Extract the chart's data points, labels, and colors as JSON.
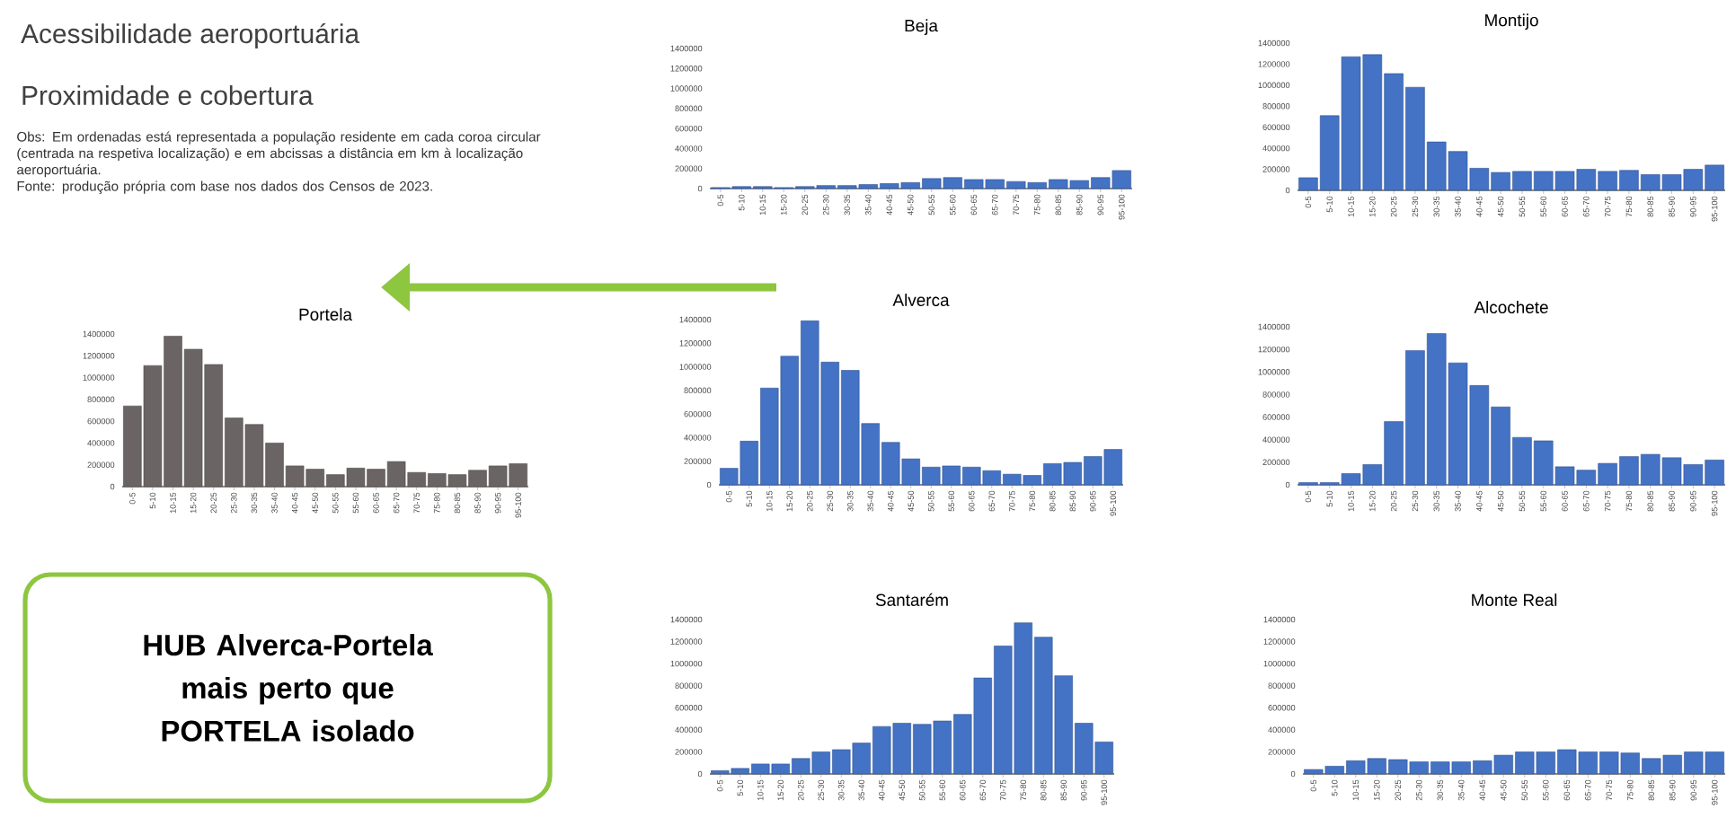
{
  "chart_data": [
    {
      "type": "other",
      "title": "Acessibilidade aeroportuária",
      "subtitle": "Proximidade e cobertura",
      "annotations": [
        "Obs: Em ordenadas está representada a população residente em cada coroa circular (centrada na respetiva localização) e em abcissas a distância em km à localização aeroportuária.",
        "Fonte: produção própria com base nos dados dos Censos de 2023.",
        "HUB Alverca-Portela mais perto que PORTELA isolado"
      ]
    },
    {
      "type": "bar",
      "title": "Beja",
      "color": "#4472c4",
      "ylim": [
        0,
        1400000
      ],
      "yticks": [
        0,
        200000,
        400000,
        600000,
        800000,
        1000000,
        1200000,
        1400000
      ],
      "categories": [
        "0-5",
        "5-10",
        "10-15",
        "15-20",
        "20-25",
        "25-30",
        "30-35",
        "35-40",
        "40-45",
        "45-50",
        "50-55",
        "55-60",
        "60-65",
        "65-70",
        "70-75",
        "75-80",
        "80-85",
        "85-90",
        "90-95",
        "95-100"
      ],
      "values": [
        10000,
        20000,
        20000,
        10000,
        20000,
        30000,
        30000,
        40000,
        50000,
        60000,
        100000,
        110000,
        90000,
        90000,
        70000,
        60000,
        90000,
        80000,
        110000,
        180000
      ]
    },
    {
      "type": "bar",
      "title": "Montijo",
      "color": "#4472c4",
      "ylim": [
        0,
        1400000
      ],
      "yticks": [
        0,
        200000,
        400000,
        600000,
        800000,
        1000000,
        1200000,
        1400000
      ],
      "categories": [
        "0-5",
        "5-10",
        "10-15",
        "15-20",
        "20-25",
        "25-30",
        "30-35",
        "35-40",
        "40-45",
        "45-50",
        "50-55",
        "55-60",
        "60-65",
        "65-70",
        "70-75",
        "75-80",
        "80-85",
        "85-90",
        "90-95",
        "95-100"
      ],
      "values": [
        120000,
        710000,
        1270000,
        1290000,
        1110000,
        980000,
        460000,
        370000,
        210000,
        170000,
        180000,
        180000,
        180000,
        200000,
        180000,
        190000,
        150000,
        150000,
        200000,
        240000
      ]
    },
    {
      "type": "bar",
      "title": "Portela",
      "color": "#6b6464",
      "ylim": [
        0,
        1400000
      ],
      "yticks": [
        0,
        200000,
        400000,
        600000,
        800000,
        1000000,
        1200000,
        1400000
      ],
      "categories": [
        "0-5",
        "5-10",
        "10-15",
        "15-20",
        "20-25",
        "25-30",
        "30-35",
        "35-40",
        "40-45",
        "45-50",
        "50-55",
        "55-60",
        "60-65",
        "65-70",
        "70-75",
        "75-80",
        "80-85",
        "85-90",
        "90-95",
        "95-100"
      ],
      "values": [
        740000,
        1110000,
        1380000,
        1260000,
        1120000,
        630000,
        570000,
        400000,
        190000,
        160000,
        110000,
        170000,
        160000,
        230000,
        130000,
        120000,
        110000,
        150000,
        190000,
        210000
      ]
    },
    {
      "type": "bar",
      "title": "Alverca",
      "color": "#4472c4",
      "ylim": [
        0,
        1400000
      ],
      "yticks": [
        0,
        200000,
        400000,
        600000,
        800000,
        1000000,
        1200000,
        1400000
      ],
      "categories": [
        "0-5",
        "5-10",
        "10-15",
        "15-20",
        "20-25",
        "25-30",
        "30-35",
        "35-40",
        "40-45",
        "45-50",
        "50-55",
        "55-60",
        "60-65",
        "65-70",
        "70-75",
        "75-80",
        "80-85",
        "85-90",
        "90-95",
        "95-100"
      ],
      "values": [
        140000,
        370000,
        820000,
        1090000,
        1390000,
        1040000,
        970000,
        520000,
        360000,
        220000,
        150000,
        160000,
        150000,
        120000,
        90000,
        80000,
        180000,
        190000,
        240000,
        300000
      ]
    },
    {
      "type": "bar",
      "title": "Alcochete",
      "color": "#4472c4",
      "ylim": [
        0,
        1400000
      ],
      "yticks": [
        0,
        200000,
        400000,
        600000,
        800000,
        1000000,
        1200000,
        1400000
      ],
      "categories": [
        "0-5",
        "5-10",
        "10-15",
        "15-20",
        "20-25",
        "25-30",
        "30-35",
        "35-40",
        "40-45",
        "45-50",
        "50-55",
        "55-60",
        "60-65",
        "65-70",
        "70-75",
        "75-80",
        "80-85",
        "85-90",
        "90-95",
        "95-100"
      ],
      "values": [
        20000,
        20000,
        100000,
        180000,
        560000,
        1190000,
        1340000,
        1080000,
        880000,
        690000,
        420000,
        390000,
        160000,
        130000,
        190000,
        250000,
        270000,
        240000,
        180000,
        220000
      ]
    },
    {
      "type": "bar",
      "title": "Santarém",
      "color": "#4472c4",
      "ylim": [
        0,
        1400000
      ],
      "yticks": [
        0,
        200000,
        400000,
        600000,
        800000,
        1000000,
        1200000,
        1400000
      ],
      "categories": [
        "0-5",
        "5-10",
        "10-15",
        "15-20",
        "20-25",
        "25-30",
        "30-35",
        "35-40",
        "40-45",
        "45-50",
        "50-55",
        "55-60",
        "60-65",
        "65-70",
        "70-75",
        "75-80",
        "80-85",
        "85-90",
        "90-95",
        "95-100"
      ],
      "values": [
        30000,
        50000,
        90000,
        90000,
        140000,
        200000,
        220000,
        280000,
        430000,
        460000,
        450000,
        480000,
        540000,
        870000,
        1160000,
        1370000,
        1240000,
        890000,
        460000,
        290000
      ]
    },
    {
      "type": "bar",
      "title": "Monte Real",
      "color": "#4472c4",
      "ylim": [
        0,
        1400000
      ],
      "yticks": [
        0,
        200000,
        400000,
        600000,
        800000,
        1000000,
        1200000,
        1400000
      ],
      "categories": [
        "0-5",
        "5-10",
        "10-15",
        "15-20",
        "20-25",
        "25-30",
        "30-35",
        "35-40",
        "40-45",
        "45-50",
        "50-55",
        "55-60",
        "60-65",
        "65-70",
        "70-75",
        "75-80",
        "80-85",
        "85-90",
        "90-95",
        "95-100"
      ],
      "values": [
        40000,
        70000,
        120000,
        140000,
        130000,
        110000,
        110000,
        110000,
        120000,
        170000,
        200000,
        200000,
        220000,
        200000,
        200000,
        190000,
        140000,
        170000,
        200000,
        200000
      ]
    }
  ]
}
